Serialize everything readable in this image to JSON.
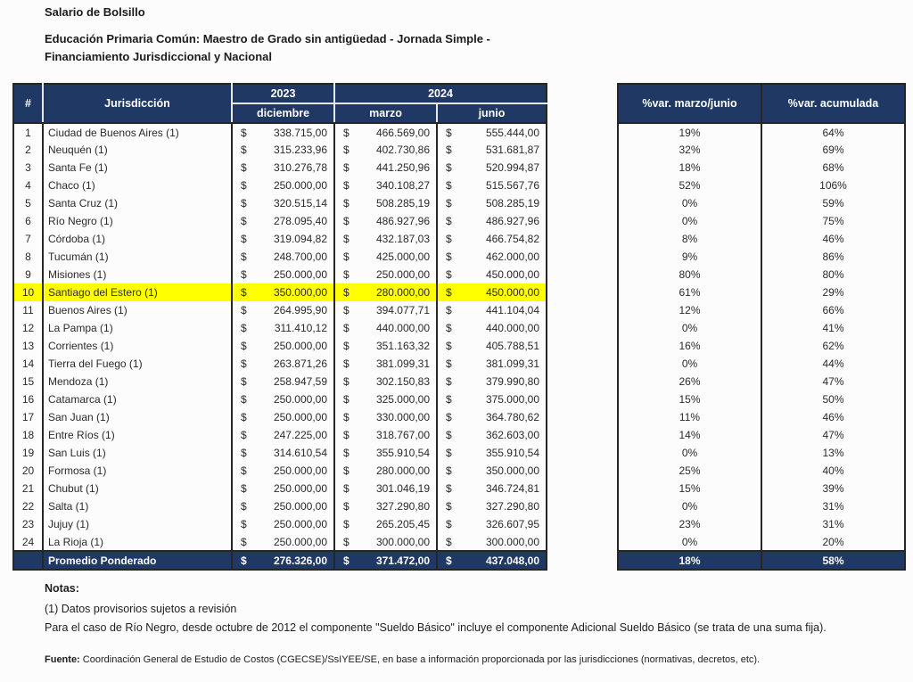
{
  "page": {
    "title": "Salario de Bolsillo",
    "subtitle_line1": "Educación Primaria Común: Maestro de Grado  sin antigüedad - Jornada Simple -",
    "subtitle_line2": "Financiamiento Jurisdiccional y Nacional"
  },
  "colors": {
    "header_navy": "#1F3864",
    "highlight_yellow": "#FFFF00",
    "border": "#262626"
  },
  "salary_table": {
    "col_number": "#",
    "col_jurisdiction": "Jurisdicción",
    "year_2023": "2023",
    "year_2024": "2024",
    "col_december": "diciembre",
    "col_march": "marzo",
    "col_june": "junio",
    "currency_symbol": "$",
    "rows": [
      {
        "n": "1",
        "jurisdiction": "Ciudad de Buenos Aires (1)",
        "dec2023": "338.715,00",
        "mar2024": "466.569,00",
        "jun2024": "555.444,00",
        "var_mj": "19%",
        "var_acc": "64%",
        "highlight": false
      },
      {
        "n": "2",
        "jurisdiction": "Neuquén (1)",
        "dec2023": "315.233,96",
        "mar2024": "402.730,86",
        "jun2024": "531.681,87",
        "var_mj": "32%",
        "var_acc": "69%",
        "highlight": false
      },
      {
        "n": "3",
        "jurisdiction": "Santa Fe (1)",
        "dec2023": "310.276,78",
        "mar2024": "441.250,96",
        "jun2024": "520.994,87",
        "var_mj": "18%",
        "var_acc": "68%",
        "highlight": false
      },
      {
        "n": "4",
        "jurisdiction": "Chaco (1)",
        "dec2023": "250.000,00",
        "mar2024": "340.108,27",
        "jun2024": "515.567,76",
        "var_mj": "52%",
        "var_acc": "106%",
        "highlight": false
      },
      {
        "n": "5",
        "jurisdiction": "Santa Cruz (1)",
        "dec2023": "320.515,14",
        "mar2024": "508.285,19",
        "jun2024": "508.285,19",
        "var_mj": "0%",
        "var_acc": "59%",
        "highlight": false
      },
      {
        "n": "6",
        "jurisdiction": "Río Negro (1)",
        "dec2023": "278.095,40",
        "mar2024": "486.927,96",
        "jun2024": "486.927,96",
        "var_mj": "0%",
        "var_acc": "75%",
        "highlight": false
      },
      {
        "n": "7",
        "jurisdiction": "Córdoba (1)",
        "dec2023": "319.094,82",
        "mar2024": "432.187,03",
        "jun2024": "466.754,82",
        "var_mj": "8%",
        "var_acc": "46%",
        "highlight": false
      },
      {
        "n": "8",
        "jurisdiction": "Tucumán (1)",
        "dec2023": "248.700,00",
        "mar2024": "425.000,00",
        "jun2024": "462.000,00",
        "var_mj": "9%",
        "var_acc": "86%",
        "highlight": false
      },
      {
        "n": "9",
        "jurisdiction": "Misiones (1)",
        "dec2023": "250.000,00",
        "mar2024": "250.000,00",
        "jun2024": "450.000,00",
        "var_mj": "80%",
        "var_acc": "80%",
        "highlight": false
      },
      {
        "n": "10",
        "jurisdiction": "Santiago del Estero (1)",
        "dec2023": "350.000,00",
        "mar2024": "280.000,00",
        "jun2024": "450.000,00",
        "var_mj": "61%",
        "var_acc": "29%",
        "highlight": true
      },
      {
        "n": "11",
        "jurisdiction": "Buenos Aires (1)",
        "dec2023": "264.995,90",
        "mar2024": "394.077,71",
        "jun2024": "441.104,04",
        "var_mj": "12%",
        "var_acc": "66%",
        "highlight": false
      },
      {
        "n": "12",
        "jurisdiction": "La Pampa (1)",
        "dec2023": "311.410,12",
        "mar2024": "440.000,00",
        "jun2024": "440.000,00",
        "var_mj": "0%",
        "var_acc": "41%",
        "highlight": false
      },
      {
        "n": "13",
        "jurisdiction": "Corrientes (1)",
        "dec2023": "250.000,00",
        "mar2024": "351.163,32",
        "jun2024": "405.788,51",
        "var_mj": "16%",
        "var_acc": "62%",
        "highlight": false
      },
      {
        "n": "14",
        "jurisdiction": "Tierra del Fuego (1)",
        "dec2023": "263.871,26",
        "mar2024": "381.099,31",
        "jun2024": "381.099,31",
        "var_mj": "0%",
        "var_acc": "44%",
        "highlight": false
      },
      {
        "n": "15",
        "jurisdiction": "Mendoza (1)",
        "dec2023": "258.947,59",
        "mar2024": "302.150,83",
        "jun2024": "379.990,80",
        "var_mj": "26%",
        "var_acc": "47%",
        "highlight": false
      },
      {
        "n": "16",
        "jurisdiction": "Catamarca (1)",
        "dec2023": "250.000,00",
        "mar2024": "325.000,00",
        "jun2024": "375.000,00",
        "var_mj": "15%",
        "var_acc": "50%",
        "highlight": false
      },
      {
        "n": "17",
        "jurisdiction": "San Juan (1)",
        "dec2023": "250.000,00",
        "mar2024": "330.000,00",
        "jun2024": "364.780,62",
        "var_mj": "11%",
        "var_acc": "46%",
        "highlight": false
      },
      {
        "n": "18",
        "jurisdiction": "Entre Ríos (1)",
        "dec2023": "247.225,00",
        "mar2024": "318.767,00",
        "jun2024": "362.603,00",
        "var_mj": "14%",
        "var_acc": "47%",
        "highlight": false
      },
      {
        "n": "19",
        "jurisdiction": "San Luis (1)",
        "dec2023": "314.610,54",
        "mar2024": "355.910,54",
        "jun2024": "355.910,54",
        "var_mj": "0%",
        "var_acc": "13%",
        "highlight": false
      },
      {
        "n": "20",
        "jurisdiction": "Formosa (1)",
        "dec2023": "250.000,00",
        "mar2024": "280.000,00",
        "jun2024": "350.000,00",
        "var_mj": "25%",
        "var_acc": "40%",
        "highlight": false
      },
      {
        "n": "21",
        "jurisdiction": "Chubut (1)",
        "dec2023": "250.000,00",
        "mar2024": "301.046,19",
        "jun2024": "346.724,81",
        "var_mj": "15%",
        "var_acc": "39%",
        "highlight": false
      },
      {
        "n": "22",
        "jurisdiction": "Salta (1)",
        "dec2023": "250.000,00",
        "mar2024": "327.290,80",
        "jun2024": "327.290,80",
        "var_mj": "0%",
        "var_acc": "31%",
        "highlight": false
      },
      {
        "n": "23",
        "jurisdiction": "Jujuy (1)",
        "dec2023": "250.000,00",
        "mar2024": "265.205,45",
        "jun2024": "326.607,95",
        "var_mj": "23%",
        "var_acc": "31%",
        "highlight": false
      },
      {
        "n": "24",
        "jurisdiction": "La Rioja (1)",
        "dec2023": "250.000,00",
        "mar2024": "300.000,00",
        "jun2024": "300.000,00",
        "var_mj": "0%",
        "var_acc": "20%",
        "highlight": false
      }
    ],
    "footer": {
      "label": "Promedio Ponderado",
      "dec2023": "276.326,00",
      "mar2024": "371.472,00",
      "jun2024": "437.048,00",
      "var_mj": "18%",
      "var_acc": "58%"
    }
  },
  "variation_table": {
    "col_var_mj": "%var. marzo/junio",
    "col_var_acc": "%var. acumulada"
  },
  "notes": {
    "heading": "Notas:",
    "line1": "(1) Datos provisorios sujetos a revisión",
    "line2": "Para el caso de Río Negro, desde octubre de 2012 el componente \"Sueldo Básico\" incluye el componente Adicional Sueldo Básico (se trata de una suma fija).",
    "source_label": "Fuente:",
    "source_text": " Coordinación General de Estudio de Costos (CGECSE)/SsIYEE/SE, en base a información proporcionada por las jurisdicciones (normativas, decretos, etc)."
  }
}
